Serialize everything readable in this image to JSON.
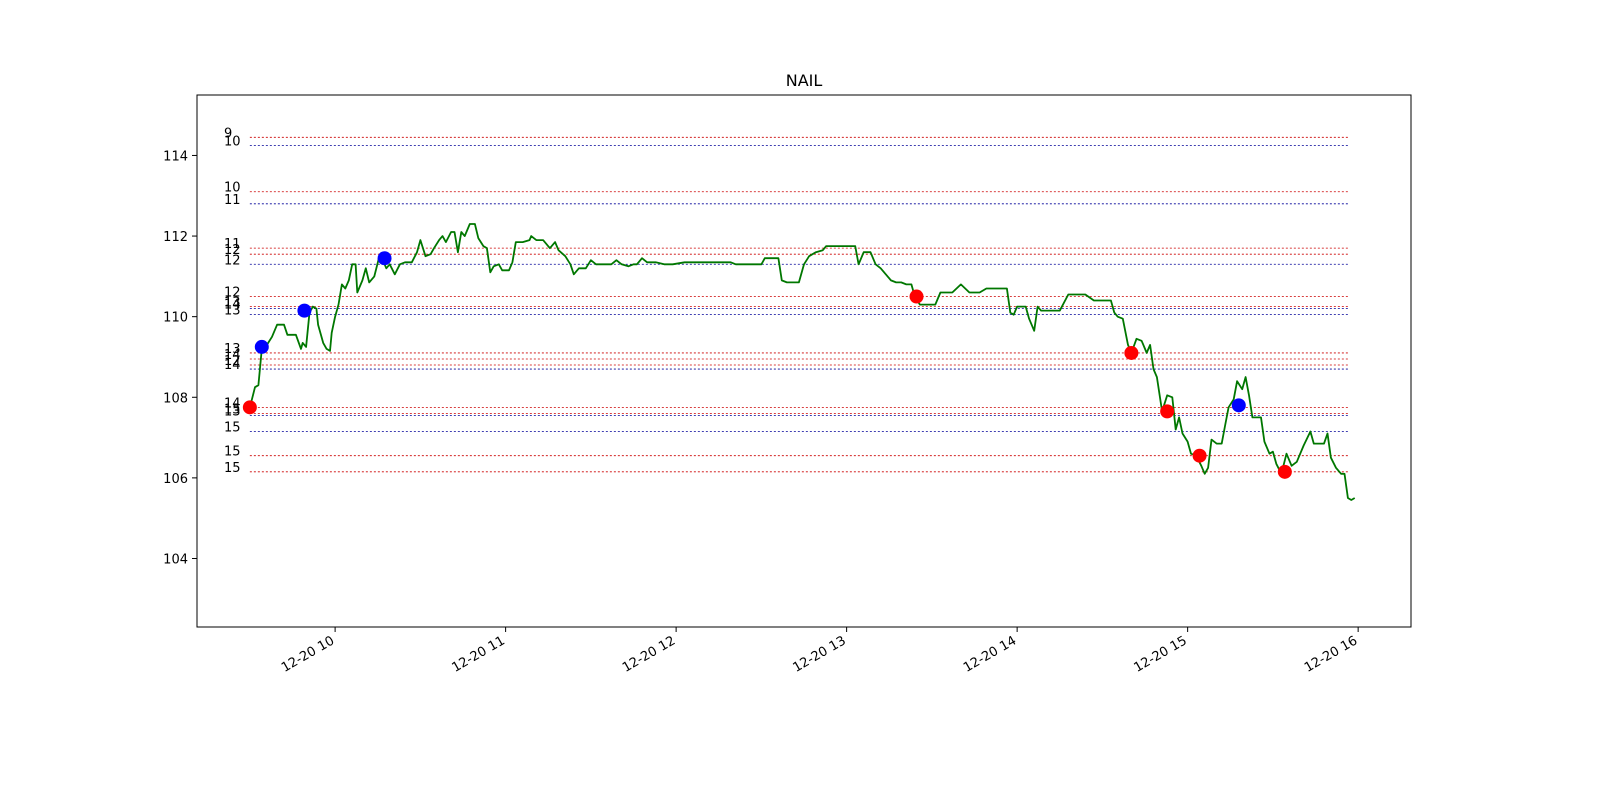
{
  "chart_data": {
    "type": "line",
    "title": "NAIL",
    "xlabel": "",
    "ylabel": "",
    "x_tick_labels": [
      "12-20 10",
      "12-20 11",
      "12-20 12",
      "12-20 13",
      "12-20 14",
      "12-20 15",
      "12-20 16"
    ],
    "x_tick_values": [
      10,
      11,
      12,
      13,
      14,
      15,
      16
    ],
    "y_tick_labels": [
      "104",
      "106",
      "108",
      "110",
      "112",
      "114"
    ],
    "y_tick_values": [
      104,
      106,
      108,
      110,
      112,
      114
    ],
    "xlim": [
      9.19,
      16.31
    ],
    "ylim": [
      102.3,
      115.5
    ],
    "grid": false,
    "colors": {
      "price": "#007700",
      "buy": "#0000ff",
      "sell": "#ff0000",
      "level_red": "#cc0000",
      "level_blue": "#000099"
    },
    "series": [
      {
        "values": [
          [
            9.5,
            107.75
          ],
          [
            9.53,
            108.25
          ],
          [
            9.55,
            108.3
          ],
          [
            9.57,
            109.2
          ],
          [
            9.6,
            109.3
          ],
          [
            9.63,
            109.5
          ],
          [
            9.66,
            109.8
          ],
          [
            9.7,
            109.8
          ],
          [
            9.72,
            109.55
          ],
          [
            9.77,
            109.55
          ],
          [
            9.8,
            109.2
          ],
          [
            9.81,
            109.35
          ],
          [
            9.83,
            109.25
          ],
          [
            9.85,
            110.1
          ],
          [
            9.87,
            110.25
          ],
          [
            9.89,
            110.2
          ],
          [
            9.9,
            109.8
          ],
          [
            9.93,
            109.35
          ],
          [
            9.95,
            109.2
          ],
          [
            9.97,
            109.15
          ],
          [
            9.98,
            109.6
          ],
          [
            10.0,
            110.0
          ],
          [
            10.02,
            110.3
          ],
          [
            10.04,
            110.8
          ],
          [
            10.06,
            110.7
          ],
          [
            10.08,
            110.9
          ],
          [
            10.1,
            111.3
          ],
          [
            10.12,
            111.3
          ],
          [
            10.13,
            110.6
          ],
          [
            10.16,
            110.9
          ],
          [
            10.18,
            111.2
          ],
          [
            10.2,
            110.85
          ],
          [
            10.23,
            111.0
          ],
          [
            10.26,
            111.5
          ],
          [
            10.28,
            111.4
          ],
          [
            10.3,
            111.2
          ],
          [
            10.32,
            111.3
          ],
          [
            10.35,
            111.05
          ],
          [
            10.38,
            111.3
          ],
          [
            10.41,
            111.35
          ],
          [
            10.45,
            111.35
          ],
          [
            10.48,
            111.6
          ],
          [
            10.5,
            111.9
          ],
          [
            10.53,
            111.5
          ],
          [
            10.56,
            111.55
          ],
          [
            10.58,
            111.7
          ],
          [
            10.61,
            111.9
          ],
          [
            10.63,
            112.0
          ],
          [
            10.65,
            111.85
          ],
          [
            10.68,
            112.1
          ],
          [
            10.7,
            112.1
          ],
          [
            10.72,
            111.6
          ],
          [
            10.74,
            112.1
          ],
          [
            10.76,
            112.0
          ],
          [
            10.79,
            112.3
          ],
          [
            10.82,
            112.3
          ],
          [
            10.84,
            111.95
          ],
          [
            10.87,
            111.75
          ],
          [
            10.89,
            111.7
          ],
          [
            10.91,
            111.1
          ],
          [
            10.93,
            111.25
          ],
          [
            10.96,
            111.3
          ],
          [
            10.98,
            111.15
          ],
          [
            11.02,
            111.15
          ],
          [
            11.04,
            111.35
          ],
          [
            11.06,
            111.85
          ],
          [
            11.1,
            111.85
          ],
          [
            11.14,
            111.9
          ],
          [
            11.15,
            112.0
          ],
          [
            11.18,
            111.9
          ],
          [
            11.22,
            111.9
          ],
          [
            11.26,
            111.7
          ],
          [
            11.29,
            111.85
          ],
          [
            11.31,
            111.65
          ],
          [
            11.35,
            111.5
          ],
          [
            11.38,
            111.3
          ],
          [
            11.4,
            111.05
          ],
          [
            11.43,
            111.2
          ],
          [
            11.47,
            111.2
          ],
          [
            11.5,
            111.4
          ],
          [
            11.53,
            111.3
          ],
          [
            11.58,
            111.3
          ],
          [
            11.62,
            111.3
          ],
          [
            11.65,
            111.4
          ],
          [
            11.68,
            111.3
          ],
          [
            11.72,
            111.25
          ],
          [
            11.75,
            111.3
          ],
          [
            11.77,
            111.3
          ],
          [
            11.8,
            111.45
          ],
          [
            11.83,
            111.35
          ],
          [
            11.88,
            111.35
          ],
          [
            11.93,
            111.3
          ],
          [
            11.98,
            111.3
          ],
          [
            12.05,
            111.35
          ],
          [
            12.15,
            111.35
          ],
          [
            12.25,
            111.35
          ],
          [
            12.32,
            111.35
          ],
          [
            12.35,
            111.3
          ],
          [
            12.45,
            111.3
          ],
          [
            12.5,
            111.3
          ],
          [
            12.52,
            111.45
          ],
          [
            12.6,
            111.45
          ],
          [
            12.62,
            110.9
          ],
          [
            12.65,
            110.85
          ],
          [
            12.72,
            110.85
          ],
          [
            12.75,
            111.3
          ],
          [
            12.78,
            111.5
          ],
          [
            12.82,
            111.6
          ],
          [
            12.86,
            111.65
          ],
          [
            12.88,
            111.75
          ],
          [
            12.93,
            111.75
          ],
          [
            12.97,
            111.75
          ],
          [
            13.05,
            111.75
          ],
          [
            13.07,
            111.3
          ],
          [
            13.1,
            111.6
          ],
          [
            13.14,
            111.6
          ],
          [
            13.17,
            111.3
          ],
          [
            13.2,
            111.2
          ],
          [
            13.23,
            111.05
          ],
          [
            13.26,
            110.9
          ],
          [
            13.29,
            110.85
          ],
          [
            13.32,
            110.85
          ],
          [
            13.35,
            110.8
          ],
          [
            13.38,
            110.8
          ],
          [
            13.4,
            110.5
          ],
          [
            13.43,
            110.3
          ],
          [
            13.52,
            110.3
          ],
          [
            13.55,
            110.6
          ],
          [
            13.62,
            110.6
          ],
          [
            13.67,
            110.8
          ],
          [
            13.72,
            110.6
          ],
          [
            13.78,
            110.6
          ],
          [
            13.82,
            110.7
          ],
          [
            13.87,
            110.7
          ],
          [
            13.94,
            110.7
          ],
          [
            13.96,
            110.1
          ],
          [
            13.98,
            110.05
          ],
          [
            14.0,
            110.25
          ],
          [
            14.05,
            110.25
          ],
          [
            14.07,
            109.95
          ],
          [
            14.1,
            109.65
          ],
          [
            14.12,
            110.25
          ],
          [
            14.14,
            110.15
          ],
          [
            14.25,
            110.15
          ],
          [
            14.3,
            110.55
          ],
          [
            14.4,
            110.55
          ],
          [
            14.45,
            110.4
          ],
          [
            14.55,
            110.4
          ],
          [
            14.57,
            110.1
          ],
          [
            14.59,
            110.0
          ],
          [
            14.62,
            109.95
          ],
          [
            14.65,
            109.3
          ],
          [
            14.67,
            109.1
          ],
          [
            14.7,
            109.45
          ],
          [
            14.73,
            109.4
          ],
          [
            14.76,
            109.1
          ],
          [
            14.78,
            109.3
          ],
          [
            14.8,
            108.7
          ],
          [
            14.82,
            108.5
          ],
          [
            14.85,
            107.65
          ],
          [
            14.88,
            108.05
          ],
          [
            14.91,
            108.0
          ],
          [
            14.93,
            107.2
          ],
          [
            14.95,
            107.5
          ],
          [
            14.97,
            107.1
          ],
          [
            15.0,
            106.9
          ],
          [
            15.02,
            106.6
          ],
          [
            15.05,
            106.55
          ],
          [
            15.08,
            106.3
          ],
          [
            15.1,
            106.1
          ],
          [
            15.12,
            106.25
          ],
          [
            15.14,
            106.95
          ],
          [
            15.17,
            106.85
          ],
          [
            15.2,
            106.85
          ],
          [
            15.22,
            107.3
          ],
          [
            15.24,
            107.75
          ],
          [
            15.27,
            107.95
          ],
          [
            15.29,
            108.4
          ],
          [
            15.32,
            108.2
          ],
          [
            15.34,
            108.5
          ],
          [
            15.36,
            108.05
          ],
          [
            15.38,
            107.5
          ],
          [
            15.43,
            107.5
          ],
          [
            15.45,
            106.9
          ],
          [
            15.48,
            106.6
          ],
          [
            15.5,
            106.65
          ],
          [
            15.52,
            106.35
          ],
          [
            15.55,
            106.1
          ],
          [
            15.58,
            106.6
          ],
          [
            15.61,
            106.3
          ],
          [
            15.64,
            106.4
          ],
          [
            15.68,
            106.8
          ],
          [
            15.72,
            107.15
          ],
          [
            15.74,
            106.85
          ],
          [
            15.8,
            106.85
          ],
          [
            15.82,
            107.1
          ],
          [
            15.84,
            106.5
          ],
          [
            15.87,
            106.25
          ],
          [
            15.9,
            106.1
          ],
          [
            15.92,
            106.1
          ],
          [
            15.94,
            105.5
          ],
          [
            15.96,
            105.45
          ],
          [
            15.98,
            105.5
          ]
        ]
      }
    ],
    "buy_points": [
      [
        9.57,
        109.25
      ],
      [
        9.82,
        110.15
      ],
      [
        10.29,
        111.45
      ],
      [
        15.3,
        107.8
      ]
    ],
    "sell_points": [
      [
        9.5,
        107.75
      ],
      [
        13.41,
        110.5
      ],
      [
        14.67,
        109.1
      ],
      [
        14.88,
        107.65
      ],
      [
        15.07,
        106.55
      ],
      [
        15.57,
        106.15
      ]
    ],
    "levels": [
      {
        "y": 114.45,
        "color": "red",
        "label": "9"
      },
      {
        "y": 114.25,
        "color": "blue",
        "label": "10"
      },
      {
        "y": 113.1,
        "color": "red",
        "label": "10"
      },
      {
        "y": 112.8,
        "color": "blue",
        "label": "11"
      },
      {
        "y": 111.7,
        "color": "red",
        "label": "11"
      },
      {
        "y": 111.55,
        "color": "red",
        "label": "12"
      },
      {
        "y": 111.3,
        "color": "blue",
        "label": "12"
      },
      {
        "y": 110.5,
        "color": "red",
        "label": "12"
      },
      {
        "y": 110.25,
        "color": "red",
        "label": "13"
      },
      {
        "y": 110.2,
        "color": "blue",
        "label": "14"
      },
      {
        "y": 110.05,
        "color": "blue",
        "label": "13"
      },
      {
        "y": 109.1,
        "color": "red",
        "label": "13"
      },
      {
        "y": 108.95,
        "color": "red",
        "label": "14"
      },
      {
        "y": 108.8,
        "color": "red",
        "label": "12"
      },
      {
        "y": 108.7,
        "color": "blue",
        "label": "14"
      },
      {
        "y": 107.75,
        "color": "red",
        "label": "14"
      },
      {
        "y": 107.6,
        "color": "red",
        "label": "15"
      },
      {
        "y": 107.55,
        "color": "blue",
        "label": "13"
      },
      {
        "y": 107.15,
        "color": "blue",
        "label": "15"
      },
      {
        "y": 106.55,
        "color": "red",
        "label": "15"
      },
      {
        "y": 106.15,
        "color": "red",
        "label": "15"
      }
    ]
  }
}
